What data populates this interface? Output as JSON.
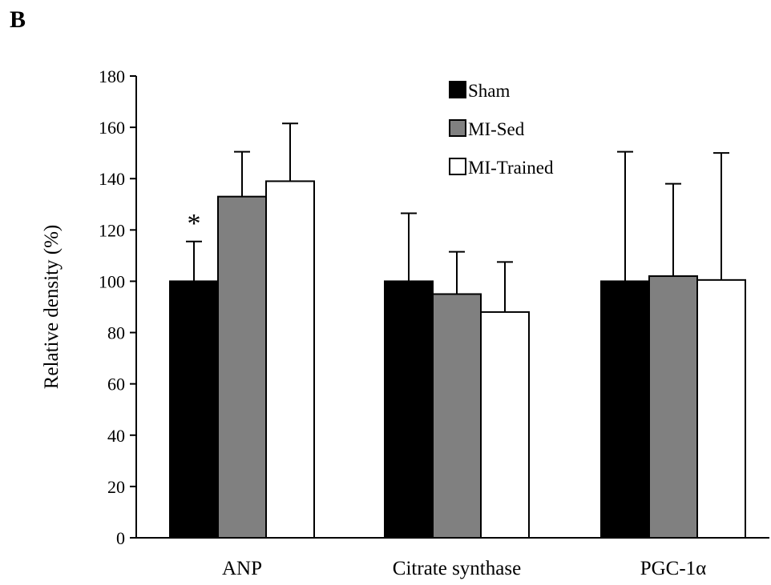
{
  "panel_label": "B",
  "chart_data": {
    "type": "bar",
    "categories": [
      "ANP",
      "Citrate synthase",
      "PGC-1α"
    ],
    "series": [
      {
        "name": "Sham",
        "color": "#000000",
        "values": [
          100,
          100,
          100
        ],
        "errors": [
          15.5,
          26.5,
          50.5
        ]
      },
      {
        "name": "MI-Sed",
        "color": "#808080",
        "values": [
          133,
          95,
          102
        ],
        "errors": [
          17.5,
          16.5,
          36
        ]
      },
      {
        "name": "MI-Trained",
        "color": "#ffffff",
        "values": [
          139,
          88,
          100.5
        ],
        "errors": [
          22.5,
          19.5,
          49.5
        ]
      }
    ],
    "ylabel": "Relative density (%)",
    "xlabel": "",
    "ylim": [
      0,
      180
    ],
    "yticks": [
      0,
      20,
      40,
      60,
      80,
      100,
      120,
      140,
      160,
      180
    ],
    "grid": false,
    "legend_position": "top-center",
    "annotations": [
      {
        "text": "*",
        "category": "ANP",
        "series": "Sham"
      }
    ]
  }
}
